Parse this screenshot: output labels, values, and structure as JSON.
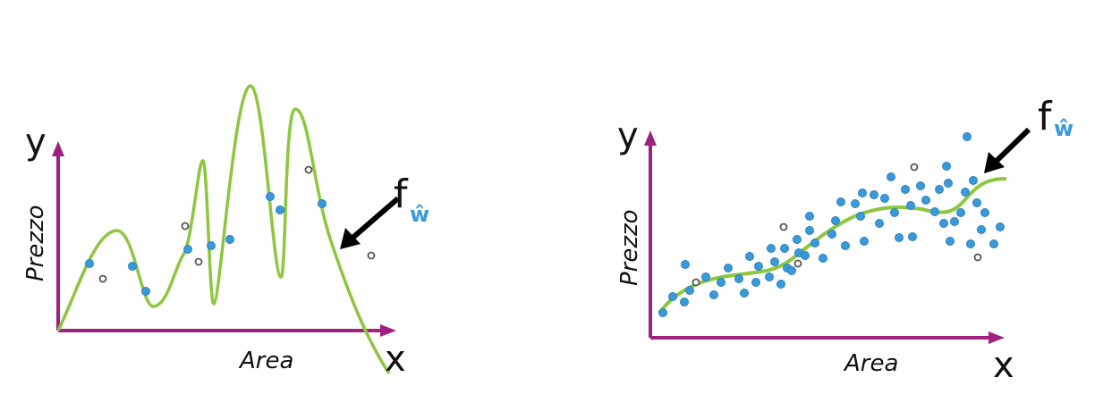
{
  "panels": [
    {
      "y_label": "y",
      "y_title": "Prezzo",
      "x_title": "Area",
      "x_label": "x",
      "function": "f",
      "subscript": "ŵ"
    },
    {
      "y_label": "y",
      "y_title": "Prezzo",
      "x_title": "Area",
      "x_label": "x",
      "function": "f",
      "subscript": "ŵ"
    }
  ]
}
